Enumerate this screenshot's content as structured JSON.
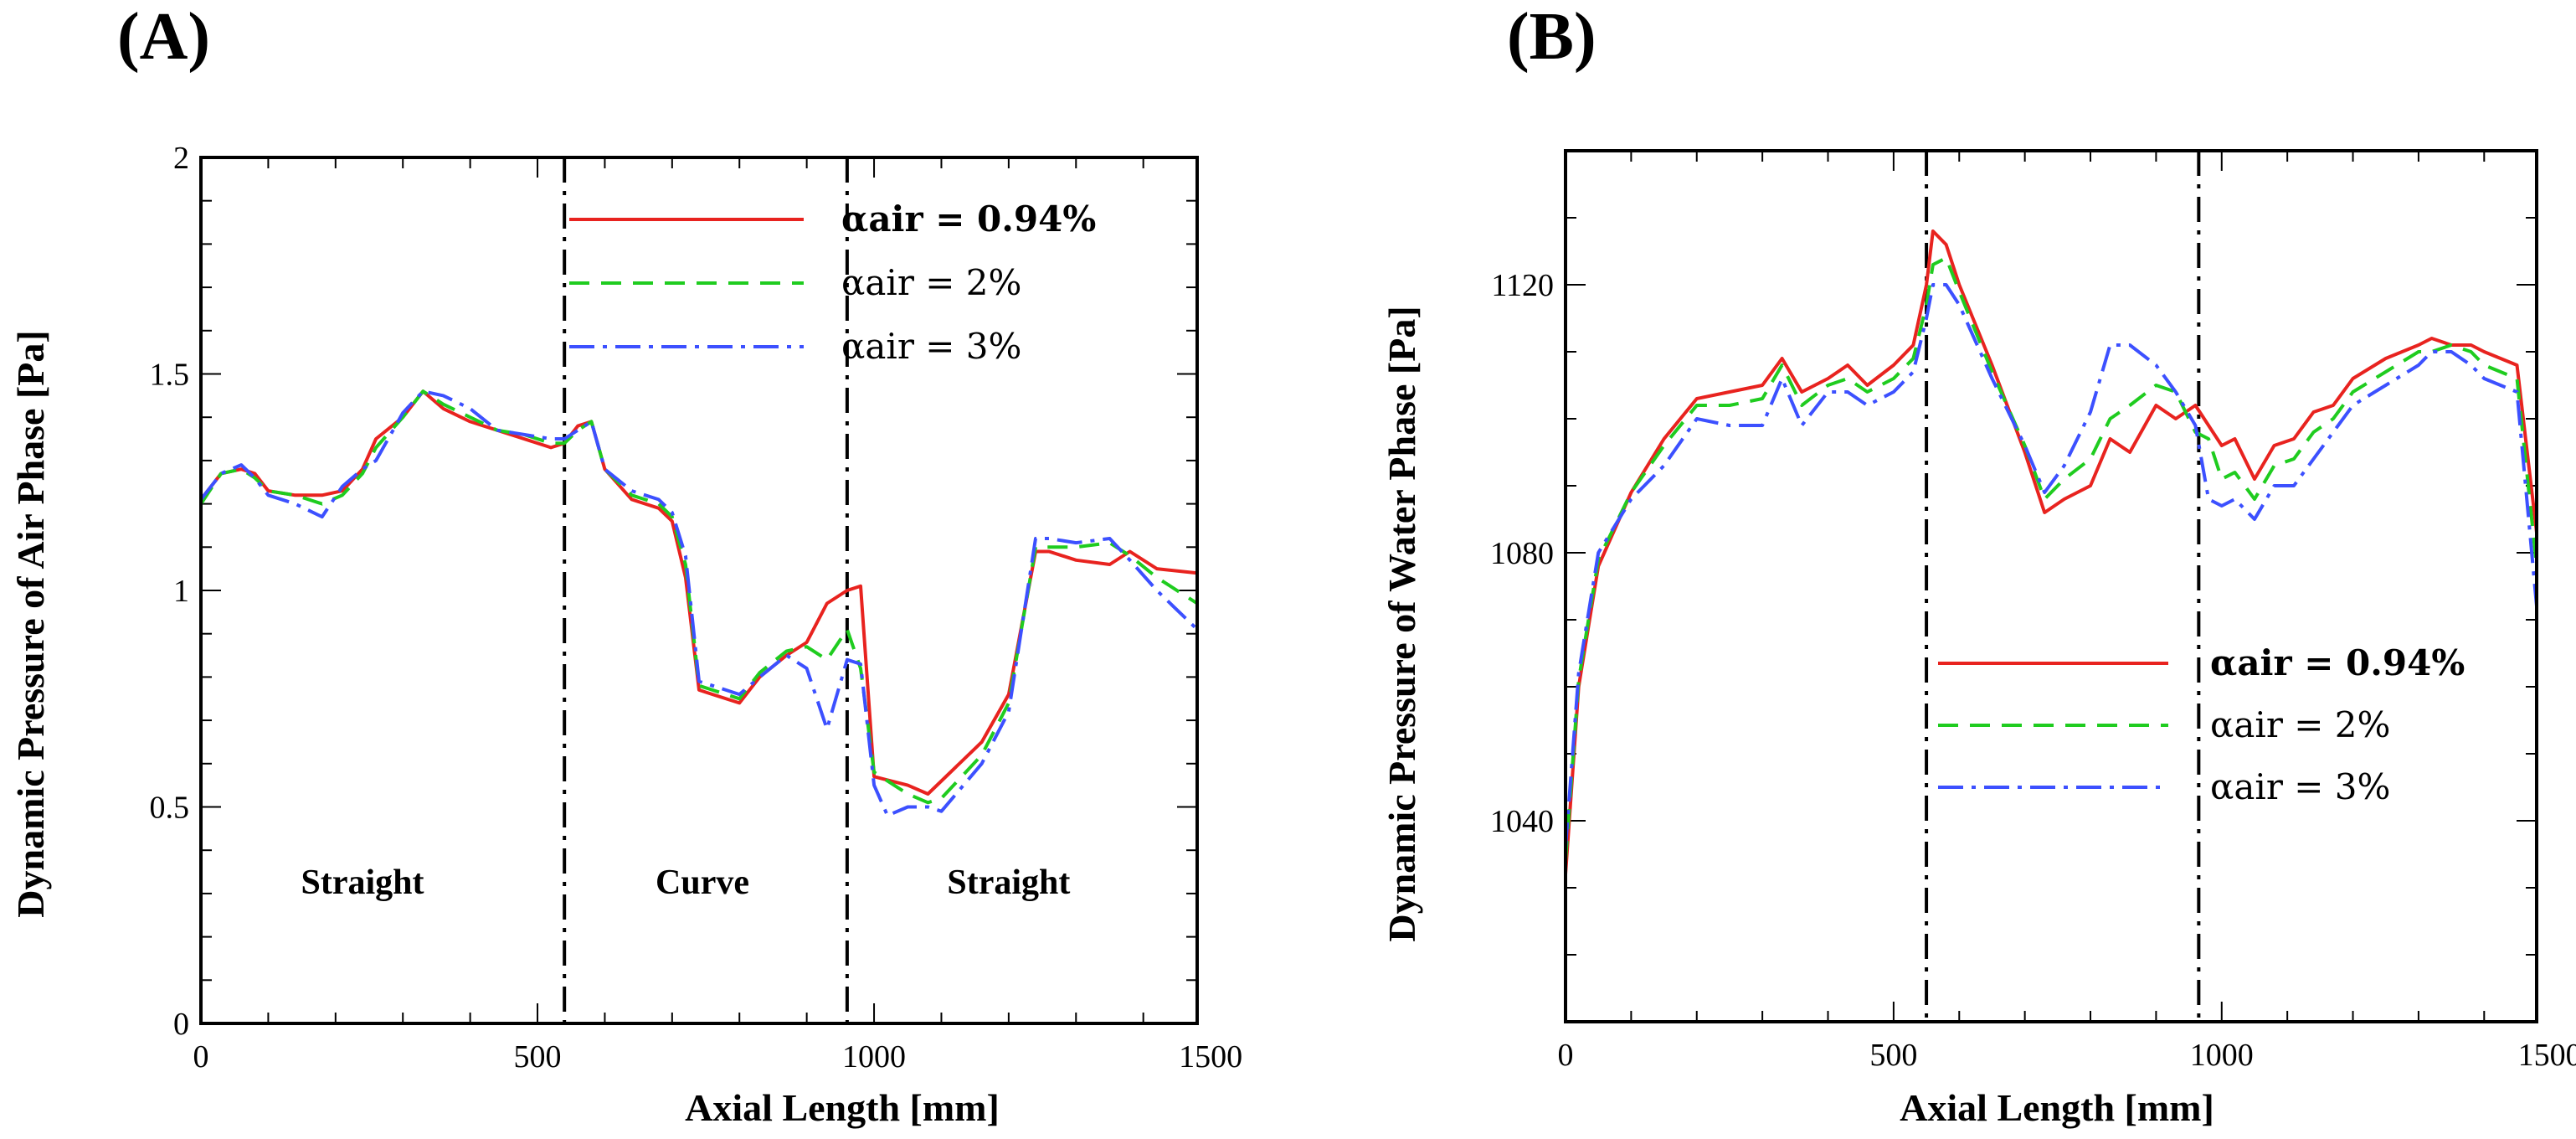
{
  "chart_data": [
    {
      "id": "A",
      "type": "line",
      "panel_label": "(A)",
      "xlabel": "Axial Length [mm]",
      "ylabel": "Dynamic Pressure of Air Phase [Pa]",
      "xlim": [
        0,
        1480
      ],
      "ylim": [
        0,
        2
      ],
      "xticks": [
        0,
        500,
        1000,
        1500
      ],
      "xtick_labels": [
        "0",
        "500",
        "1000",
        "1500"
      ],
      "yticks": [
        0,
        0.5,
        1,
        1.5,
        2
      ],
      "ytick_labels": [
        "0",
        "0.5",
        "1",
        "1.5",
        "2"
      ],
      "x_minor_step": 100,
      "y_minor_step": 0.1,
      "vlines": [
        540,
        960
      ],
      "regions": [
        {
          "label": "Straight",
          "x": 240,
          "y": 0.3
        },
        {
          "label": "Curve",
          "x": 745,
          "y": 0.3
        },
        {
          "label": "Straight",
          "x": 1200,
          "y": 0.3
        }
      ],
      "legend_position": "top-right",
      "series": [
        {
          "name": "αair = 0.94%",
          "bold": true,
          "color": "#e8231f",
          "dash": "",
          "x": [
            0,
            30,
            60,
            80,
            100,
            140,
            180,
            210,
            240,
            260,
            300,
            330,
            360,
            400,
            440,
            480,
            520,
            540,
            560,
            580,
            600,
            640,
            680,
            700,
            720,
            740,
            760,
            800,
            830,
            870,
            900,
            930,
            960,
            980,
            1000,
            1050,
            1080,
            1100,
            1160,
            1200,
            1240,
            1260,
            1300,
            1350,
            1380,
            1420,
            1480
          ],
          "y": [
            1.21,
            1.27,
            1.28,
            1.27,
            1.23,
            1.22,
            1.22,
            1.23,
            1.28,
            1.35,
            1.4,
            1.46,
            1.42,
            1.39,
            1.37,
            1.35,
            1.33,
            1.34,
            1.38,
            1.39,
            1.28,
            1.21,
            1.19,
            1.16,
            1.03,
            0.77,
            0.76,
            0.74,
            0.8,
            0.85,
            0.88,
            0.97,
            1.0,
            1.01,
            0.57,
            0.55,
            0.53,
            0.56,
            0.65,
            0.76,
            1.09,
            1.09,
            1.07,
            1.06,
            1.09,
            1.05,
            1.04
          ]
        },
        {
          "name": "αair = 2%",
          "bold": false,
          "color": "#1fcc1f",
          "dash": "24,14",
          "x": [
            0,
            30,
            60,
            80,
            100,
            140,
            180,
            210,
            240,
            260,
            300,
            330,
            360,
            400,
            440,
            480,
            520,
            540,
            560,
            580,
            600,
            640,
            680,
            700,
            720,
            740,
            760,
            800,
            830,
            870,
            900,
            930,
            960,
            980,
            1000,
            1050,
            1080,
            1100,
            1160,
            1200,
            1240,
            1260,
            1300,
            1350,
            1380,
            1420,
            1480
          ],
          "y": [
            1.2,
            1.27,
            1.28,
            1.26,
            1.23,
            1.22,
            1.2,
            1.22,
            1.27,
            1.33,
            1.4,
            1.46,
            1.43,
            1.4,
            1.37,
            1.36,
            1.34,
            1.34,
            1.37,
            1.39,
            1.28,
            1.22,
            1.2,
            1.17,
            1.06,
            0.78,
            0.77,
            0.75,
            0.81,
            0.86,
            0.87,
            0.84,
            0.91,
            0.82,
            0.58,
            0.53,
            0.51,
            0.52,
            0.62,
            0.74,
            1.1,
            1.1,
            1.1,
            1.11,
            1.08,
            1.03,
            0.97
          ]
        },
        {
          "name": "αair = 3%",
          "bold": false,
          "color": "#3c50ff",
          "dash": "30,10,5,10",
          "x": [
            0,
            30,
            60,
            80,
            100,
            140,
            180,
            210,
            240,
            260,
            300,
            330,
            360,
            400,
            440,
            480,
            520,
            540,
            560,
            580,
            600,
            640,
            680,
            700,
            720,
            740,
            760,
            800,
            830,
            870,
            900,
            930,
            960,
            980,
            1000,
            1020,
            1050,
            1080,
            1100,
            1160,
            1200,
            1240,
            1260,
            1300,
            1350,
            1380,
            1420,
            1480
          ],
          "y": [
            1.21,
            1.27,
            1.29,
            1.26,
            1.22,
            1.2,
            1.17,
            1.24,
            1.28,
            1.3,
            1.41,
            1.46,
            1.45,
            1.42,
            1.37,
            1.36,
            1.35,
            1.35,
            1.37,
            1.39,
            1.28,
            1.23,
            1.21,
            1.18,
            1.08,
            0.79,
            0.78,
            0.76,
            0.8,
            0.85,
            0.82,
            0.68,
            0.84,
            0.83,
            0.55,
            0.48,
            0.5,
            0.5,
            0.49,
            0.6,
            0.72,
            1.12,
            1.12,
            1.11,
            1.12,
            1.07,
            1.0,
            0.91
          ]
        }
      ]
    },
    {
      "id": "B",
      "type": "line",
      "panel_label": "(B)",
      "xlabel": "Axial Length [mm]",
      "ylabel": "Dynamic Pressure of Water Phase [Pa]",
      "xlim": [
        0,
        1480
      ],
      "ylim": [
        1010,
        1140
      ],
      "xticks": [
        0,
        500,
        1000,
        1500
      ],
      "xtick_labels": [
        "0",
        "500",
        "1000",
        "1500"
      ],
      "yticks": [
        1040,
        1080,
        1120
      ],
      "ytick_labels": [
        "1040",
        "1080",
        "1120"
      ],
      "x_minor_step": 100,
      "y_minor_step": 10,
      "vlines": [
        550,
        965
      ],
      "regions": [],
      "legend_position": "bottom-right",
      "series": [
        {
          "name": "αair = 0.94%",
          "bold": true,
          "color": "#e8231f",
          "dash": "",
          "x": [
            0,
            20,
            50,
            100,
            150,
            200,
            250,
            300,
            330,
            360,
            400,
            430,
            460,
            500,
            530,
            550,
            560,
            580,
            600,
            650,
            700,
            730,
            760,
            800,
            830,
            860,
            900,
            930,
            960,
            980,
            1000,
            1020,
            1050,
            1080,
            1110,
            1140,
            1170,
            1200,
            1250,
            1300,
            1320,
            1350,
            1380,
            1400,
            1450,
            1480
          ],
          "y": [
            1032,
            1060,
            1078,
            1089,
            1097,
            1103,
            1104,
            1105,
            1109,
            1104,
            1106,
            1108,
            1105,
            1108,
            1111,
            1120,
            1128,
            1126,
            1120,
            1108,
            1095,
            1086,
            1088,
            1090,
            1097,
            1095,
            1102,
            1100,
            1102,
            1099,
            1096,
            1097,
            1091,
            1096,
            1097,
            1101,
            1102,
            1106,
            1109,
            1111,
            1112,
            1111,
            1111,
            1110,
            1108,
            1083
          ]
        },
        {
          "name": "αair = 2%",
          "bold": false,
          "color": "#1fcc1f",
          "dash": "24,14",
          "x": [
            0,
            20,
            50,
            100,
            150,
            200,
            250,
            300,
            330,
            360,
            400,
            430,
            460,
            500,
            530,
            550,
            560,
            580,
            600,
            650,
            700,
            730,
            760,
            800,
            830,
            860,
            900,
            930,
            960,
            980,
            1000,
            1020,
            1050,
            1080,
            1110,
            1140,
            1170,
            1200,
            1250,
            1300,
            1320,
            1350,
            1380,
            1400,
            1450,
            1480
          ],
          "y": [
            1034,
            1061,
            1079,
            1089,
            1096,
            1102,
            1102,
            1103,
            1108,
            1102,
            1105,
            1106,
            1104,
            1106,
            1109,
            1117,
            1123,
            1124,
            1119,
            1107,
            1096,
            1088,
            1091,
            1094,
            1100,
            1102,
            1105,
            1104,
            1098,
            1097,
            1091,
            1092,
            1088,
            1093,
            1094,
            1098,
            1100,
            1104,
            1107,
            1110,
            1110,
            1111,
            1110,
            1108,
            1106,
            1078
          ]
        },
        {
          "name": "αair = 3%",
          "bold": false,
          "color": "#3c50ff",
          "dash": "30,10,5,10",
          "x": [
            0,
            20,
            50,
            100,
            150,
            200,
            250,
            300,
            330,
            360,
            400,
            430,
            460,
            500,
            530,
            550,
            560,
            580,
            600,
            650,
            700,
            730,
            760,
            800,
            830,
            860,
            900,
            930,
            960,
            980,
            1000,
            1020,
            1050,
            1080,
            1110,
            1140,
            1170,
            1200,
            1250,
            1300,
            1320,
            1350,
            1380,
            1400,
            1450,
            1480
          ],
          "y": [
            1036,
            1062,
            1080,
            1088,
            1093,
            1100,
            1099,
            1099,
            1106,
            1099,
            1104,
            1104,
            1102,
            1104,
            1107,
            1115,
            1120,
            1120,
            1117,
            1106,
            1096,
            1089,
            1093,
            1101,
            1111,
            1111,
            1108,
            1104,
            1099,
            1088,
            1087,
            1088,
            1085,
            1090,
            1090,
            1094,
            1098,
            1102,
            1105,
            1108,
            1110,
            1110,
            1108,
            1106,
            1104,
            1072
          ]
        }
      ]
    }
  ]
}
